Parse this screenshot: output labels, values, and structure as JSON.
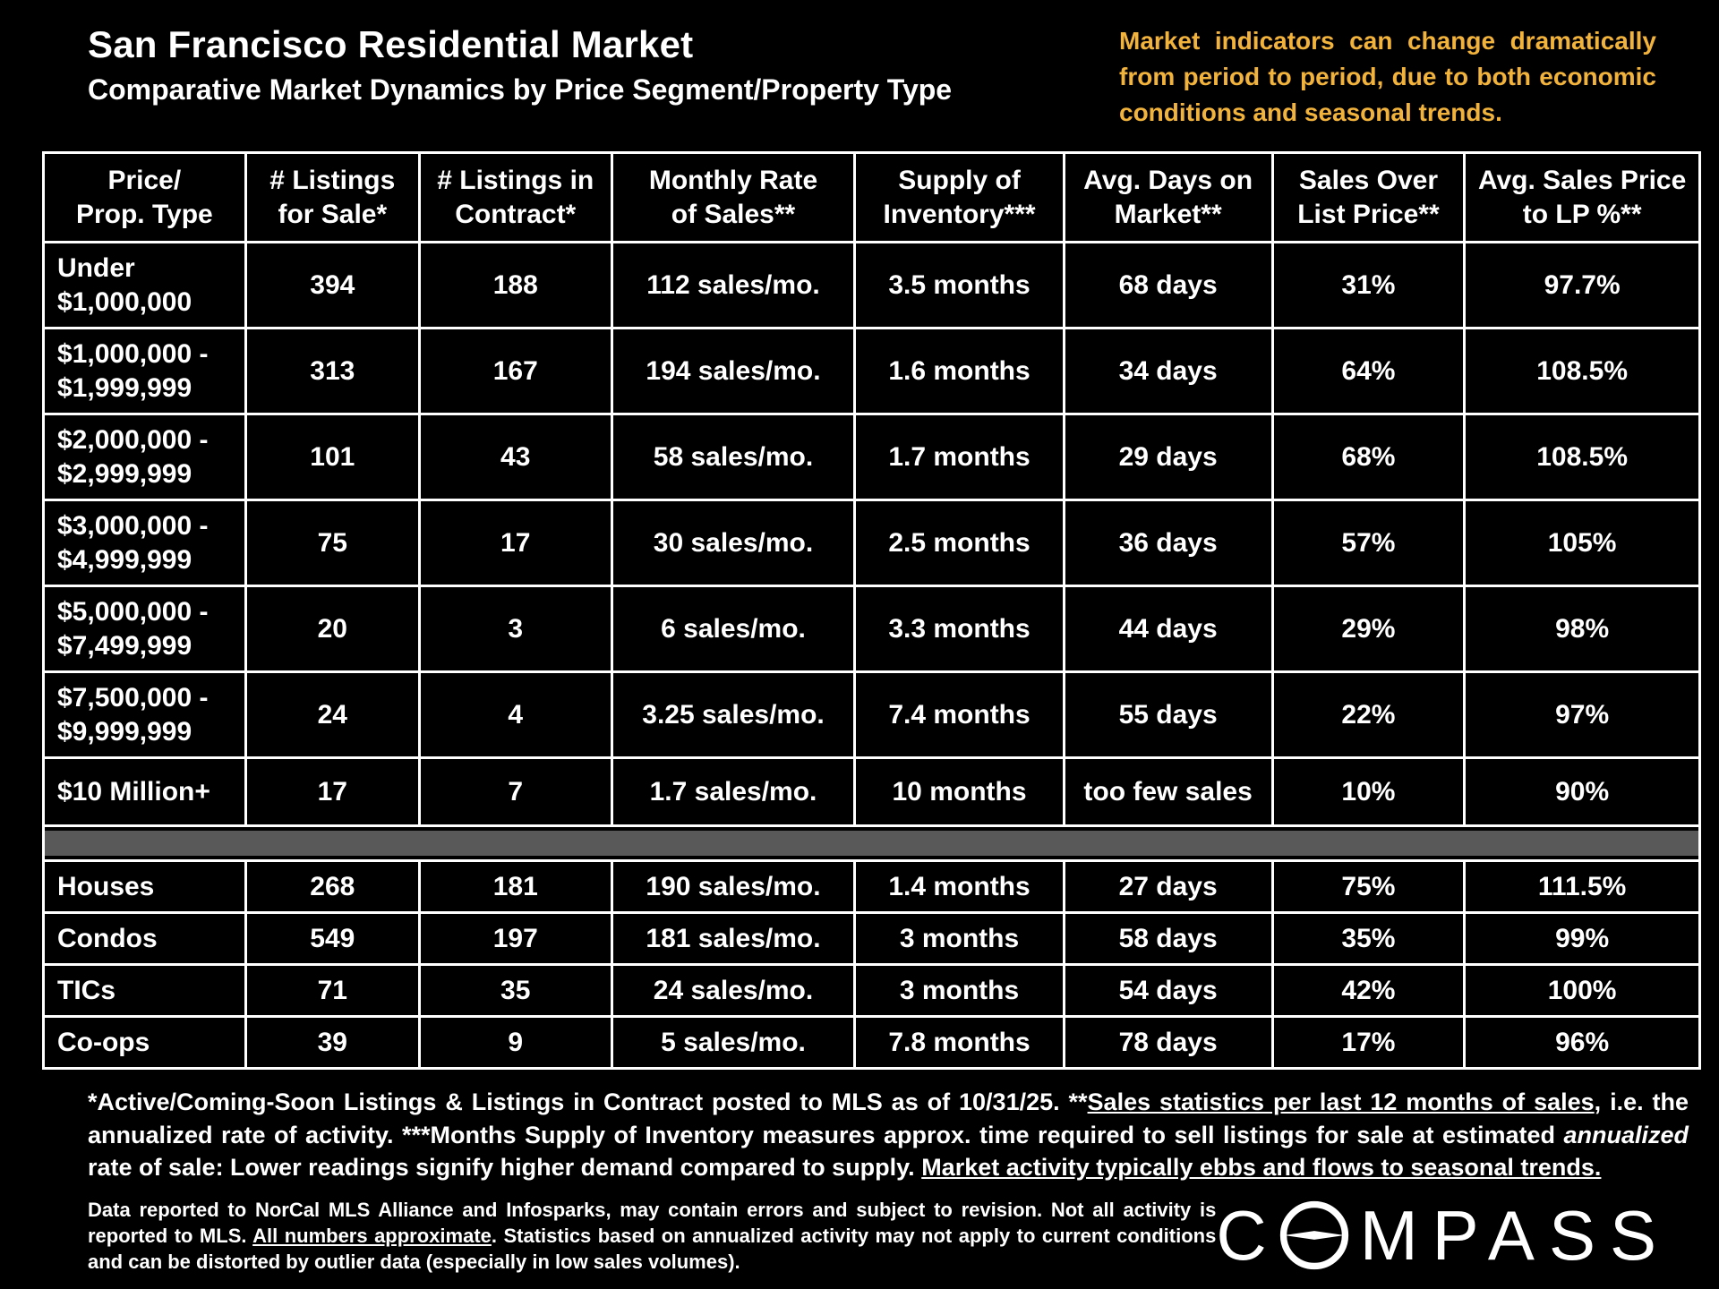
{
  "header": {
    "title": "San Francisco Residential Market",
    "subtitle": "Comparative Market Dynamics by Price Segment/Property Type",
    "note": "Market indicators can change dramatically from period to period, due to both economic conditions and seasonal trends.",
    "note_color": "#F2B33D"
  },
  "chart_data": {
    "type": "table",
    "title": "San Francisco Residential Market",
    "subtitle": "Comparative Market Dynamics by Price Segment/Property Type",
    "columns": [
      "Price/\nProp. Type",
      "# Listings\nfor Sale*",
      "# Listings in\nContract*",
      "Monthly Rate\nof Sales**",
      "Supply of\nInventory***",
      "Avg. Days on\nMarket**",
      "Sales Over\nList Price**",
      "Avg. Sales Price\nto LP %**"
    ],
    "price_segment_rows": [
      {
        "label": "Under\n$1,000,000",
        "values": [
          "394",
          "188",
          "112 sales/mo.",
          "3.5 months",
          "68 days",
          "31%",
          "97.7%"
        ]
      },
      {
        "label": "$1,000,000 -\n$1,999,999",
        "values": [
          "313",
          "167",
          "194 sales/mo.",
          "1.6 months",
          "34 days",
          "64%",
          "108.5%"
        ]
      },
      {
        "label": "$2,000,000 -\n$2,999,999",
        "values": [
          "101",
          "43",
          "58 sales/mo.",
          "1.7 months",
          "29 days",
          "68%",
          "108.5%"
        ]
      },
      {
        "label": "$3,000,000 -\n$4,999,999",
        "values": [
          "75",
          "17",
          "30 sales/mo.",
          "2.5 months",
          "36 days",
          "57%",
          "105%"
        ]
      },
      {
        "label": "$5,000,000 -\n$7,499,999",
        "values": [
          "20",
          "3",
          "6 sales/mo.",
          "3.3 months",
          "44 days",
          "29%",
          "98%"
        ]
      },
      {
        "label": "$7,500,000 -\n$9,999,999",
        "values": [
          "24",
          "4",
          "3.25 sales/mo.",
          "7.4 months",
          "55 days",
          "22%",
          "97%"
        ]
      },
      {
        "label": "$10 Million+",
        "values": [
          "17",
          "7",
          "1.7 sales/mo.",
          "10 months",
          "too few sales",
          "10%",
          "90%"
        ]
      }
    ],
    "property_type_rows": [
      {
        "label": "Houses",
        "values": [
          "268",
          "181",
          "190 sales/mo.",
          "1.4 months",
          "27 days",
          "75%",
          "111.5%"
        ]
      },
      {
        "label": "Condos",
        "values": [
          "549",
          "197",
          "181 sales/mo.",
          "3 months",
          "58 days",
          "35%",
          "99%"
        ]
      },
      {
        "label": "TICs",
        "values": [
          "71",
          "35",
          "24 sales/mo.",
          "3 months",
          "54 days",
          "42%",
          "100%"
        ]
      },
      {
        "label": "Co-ops",
        "values": [
          "39",
          "9",
          "5 sales/mo.",
          "7.8 months",
          "78 days",
          "17%",
          "96%"
        ]
      }
    ]
  },
  "footnotes": {
    "primary_segments": [
      {
        "text": "*Active/Coming-Soon Listings & Listings in Contract posted to MLS as of 10/31/25. **",
        "style": ""
      },
      {
        "text": "Sales statistics per last 12 months of sales",
        "style": "underline"
      },
      {
        "text": ", i.e. the annualized rate of activity.  ***Months Supply of Inventory measures approx. time required to sell listings for sale at estimated ",
        "style": ""
      },
      {
        "text": "annualized",
        "style": "italic"
      },
      {
        "text": " rate of sale:  Lower readings signify higher demand compared to supply. ",
        "style": ""
      },
      {
        "text": "Market activity typically ebbs and flows to seasonal trends.",
        "style": "underline"
      }
    ],
    "secondary_segments": [
      {
        "text": "Data reported to NorCal MLS Alliance and Infosparks, may contain errors and subject to revision.  Not all activity is reported to MLS. ",
        "style": ""
      },
      {
        "text": "All numbers approximate",
        "style": "underline"
      },
      {
        "text": ". Statistics based on annualized activity may not apply to current conditions and can be distorted by outlier data (especially in low sales volumes).",
        "style": ""
      }
    ]
  },
  "logo": {
    "part1": "C",
    "part2": "MPASS"
  }
}
